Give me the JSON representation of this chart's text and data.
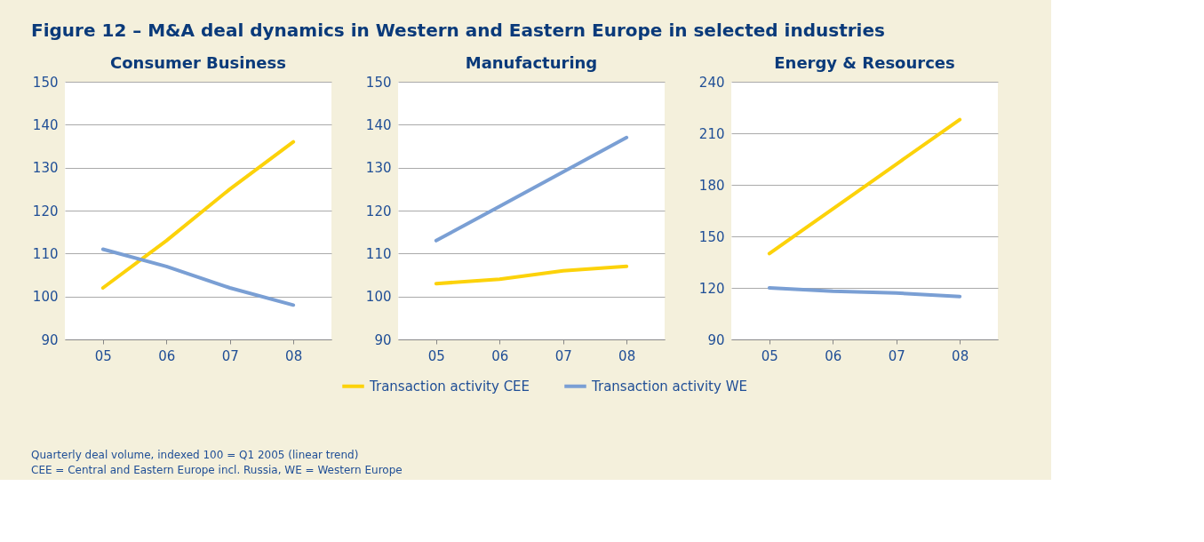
{
  "chart_data": [
    {
      "type": "line",
      "title": "Consumer Business",
      "legend": "bottom",
      "annotations": [
        "Figure 12 – M&A deal dynamics in Western and Eastern Europe in selected industries",
        "Quarterly deal volume, indexed 100 = Q1 2005 (linear trend)",
        "CEE = Central and Eastern Europe incl. Russia, WE = Western Europe"
      ],
      "categories": [
        "05",
        "06",
        "07",
        "08"
      ],
      "ylim": [
        90,
        150
      ],
      "yticks": [
        90,
        100,
        110,
        120,
        130,
        140,
        150
      ],
      "grid": "y",
      "series": [
        {
          "name": "Transaction activity CEE",
          "color": "#fcd20a",
          "values": [
            102,
            113,
            125,
            136
          ]
        },
        {
          "name": "Transaction activity WE",
          "color": "#7a9fd4",
          "values": [
            111,
            107,
            102,
            98
          ]
        }
      ]
    },
    {
      "type": "line",
      "title": "Manufacturing",
      "categories": [
        "05",
        "06",
        "07",
        "08"
      ],
      "ylim": [
        90,
        150
      ],
      "yticks": [
        90,
        100,
        110,
        120,
        130,
        140,
        150
      ],
      "grid": "y",
      "series": [
        {
          "color": "#fcd20a",
          "values": [
            103,
            104,
            106,
            107
          ]
        },
        {
          "color": "#7a9fd4",
          "values": [
            113,
            121,
            129,
            137
          ]
        }
      ]
    },
    {
      "type": "line",
      "title": "Energy & Resources",
      "categories": [
        "05",
        "06",
        "07",
        "08"
      ],
      "ylim": [
        90,
        240
      ],
      "yticks": [
        90,
        120,
        150,
        180,
        210,
        240
      ],
      "grid": "y",
      "series": [
        {
          "color": "#fcd20a",
          "values": [
            140,
            166,
            192,
            218
          ]
        },
        {
          "color": "#7a9fd4",
          "values": [
            120,
            118,
            117,
            115
          ]
        }
      ]
    }
  ]
}
